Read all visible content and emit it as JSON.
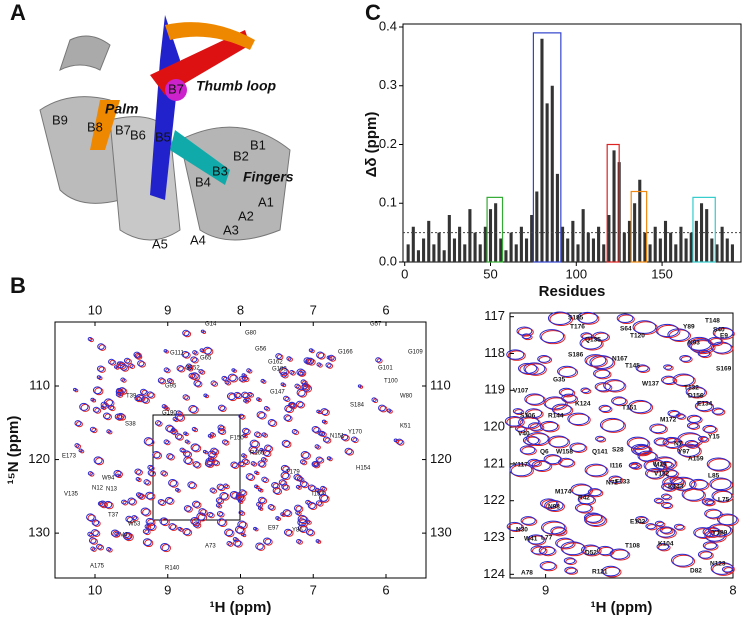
{
  "panels": {
    "a": "A",
    "b": "B",
    "c": "C"
  },
  "structure": {
    "thumb_loop": "Thumb loop",
    "palm": "Palm",
    "fingers": "Fingers",
    "sphere": "B7",
    "strands": [
      "B1",
      "B2",
      "B3",
      "B4",
      "B5",
      "B6",
      "B7",
      "B8",
      "B9",
      "A1",
      "A2",
      "A3",
      "A4",
      "A5"
    ]
  },
  "spectrum": {
    "xlim": [
      10.55,
      5.45
    ],
    "xticks": [
      10,
      9,
      8,
      7,
      6
    ],
    "ylim": [
      101.3,
      136.1
    ],
    "yticks": [
      110,
      120,
      130
    ],
    "xlabel": "¹H (ppm)",
    "ylabel": "¹⁵N (ppm)",
    "peak_labels": [
      "G14",
      "G80",
      "G111",
      "G65",
      "G152",
      "G95",
      "G56",
      "G162",
      "G183",
      "G147",
      "G166",
      "G57",
      "G109",
      "G101",
      "T100",
      "W80",
      "T39",
      "S38",
      "E173",
      "V135",
      "N12",
      "W94",
      "T37",
      "N13",
      "W53",
      "V4",
      "G190",
      "A73",
      "E97",
      "R160",
      "F150",
      "T179",
      "H154",
      "I157",
      "A175",
      "R140",
      "Y86",
      "K51",
      "Y170",
      "N151",
      "S184"
    ]
  },
  "zoom": {
    "xlim": [
      9.19,
      8.0
    ],
    "xticks": [
      9,
      8
    ],
    "ylim": [
      116.9,
      124.1
    ],
    "yticks": [
      117,
      118,
      119,
      120,
      121,
      122,
      123,
      124
    ],
    "xlabel": "¹H (ppm)",
    "peak_labels": [
      "S185",
      "T176",
      "S64",
      "Y89",
      "T148",
      "S40",
      "E9",
      "Q135",
      "T120",
      "N93",
      "S186",
      "N167",
      "T145",
      "S169",
      "G35",
      "V107",
      "W137",
      "T132",
      "K124",
      "T151",
      "D156",
      "E134",
      "S106",
      "R144",
      "M172",
      "Y15",
      "V40",
      "Q6",
      "W158",
      "Q141",
      "S28",
      "N7",
      "Y97",
      "I116",
      "M29",
      "A159",
      "V122",
      "F133",
      "N72",
      "K143",
      "L85",
      "Y117",
      "M174",
      "R42",
      "N98",
      "E102",
      "K104",
      "T108",
      "N30",
      "W41",
      "L77",
      "D52",
      "R121",
      "A78",
      "Y189",
      "N123",
      "D82",
      "L75"
    ]
  },
  "chart_data": {
    "type": "bar",
    "xlabel": "Residues",
    "ylabel": "Δδ (ppm)",
    "color": "#333333",
    "x": [
      2,
      5,
      8,
      11,
      14,
      17,
      20,
      23,
      26,
      29,
      32,
      35,
      38,
      41,
      44,
      47,
      50,
      53,
      56,
      59,
      62,
      65,
      68,
      71,
      74,
      77,
      80,
      83,
      86,
      89,
      92,
      95,
      98,
      101,
      104,
      107,
      110,
      113,
      116,
      119,
      122,
      125,
      128,
      131,
      134,
      137,
      140,
      143,
      146,
      149,
      152,
      155,
      158,
      161,
      164,
      167,
      170,
      173,
      176,
      179,
      182,
      185,
      188,
      191
    ],
    "values": [
      0.03,
      0.06,
      0.02,
      0.04,
      0.07,
      0.03,
      0.05,
      0.02,
      0.08,
      0.04,
      0.06,
      0.03,
      0.09,
      0.05,
      0.03,
      0.06,
      0.09,
      0.1,
      0.04,
      0.02,
      0.05,
      0.03,
      0.06,
      0.04,
      0.08,
      0.12,
      0.38,
      0.27,
      0.3,
      0.15,
      0.06,
      0.04,
      0.07,
      0.03,
      0.09,
      0.05,
      0.04,
      0.06,
      0.03,
      0.08,
      0.19,
      0.17,
      0.05,
      0.07,
      0.1,
      0.14,
      0.05,
      0.03,
      0.06,
      0.04,
      0.07,
      0.05,
      0.03,
      0.06,
      0.04,
      0.05,
      0.07,
      0.1,
      0.09,
      0.04,
      0.03,
      0.06,
      0.04,
      0.03
    ],
    "xlim": [
      -1,
      196
    ],
    "xticks": [
      0,
      50,
      100,
      150
    ],
    "ylim": [
      0,
      0.4
    ],
    "yticks": [
      {
        "value": 0,
        "label": "0.0"
      },
      0.1,
      0.2,
      0.3,
      0.4
    ],
    "threshold": 0.05,
    "highlights": [
      {
        "x": [
          48,
          57
        ],
        "top": 0.11,
        "color": "#33aa33"
      },
      {
        "x": [
          75,
          91
        ],
        "top": 0.39,
        "color": "#3344cc"
      },
      {
        "x": [
          118,
          125
        ],
        "top": 0.2,
        "color": "#dd2222"
      },
      {
        "x": [
          132,
          141
        ],
        "top": 0.12,
        "color": "#ee8811"
      },
      {
        "x": [
          168,
          181
        ],
        "top": 0.11,
        "color": "#33cccc"
      }
    ]
  }
}
